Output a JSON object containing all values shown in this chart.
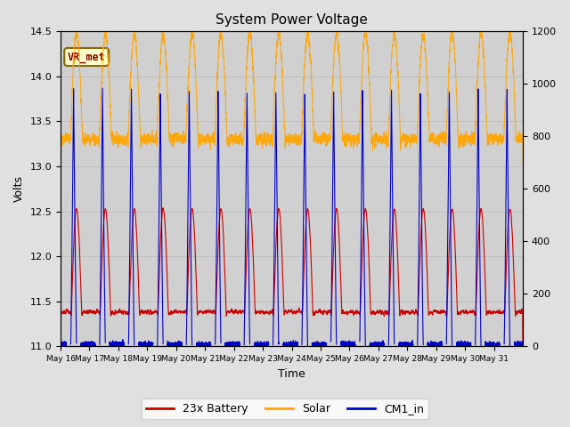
{
  "title": "System Power Voltage",
  "xlabel": "Time",
  "ylabel": "Volts",
  "ylim_left": [
    11.0,
    14.5
  ],
  "ylim_right": [
    0,
    1200
  ],
  "x_tick_labels": [
    "May 16",
    "May 17",
    "May 18",
    "May 19",
    "May 20",
    "May 21",
    "May 22",
    "May 23",
    "May 24",
    "May 25",
    "May 26",
    "May 27",
    "May 28",
    "May 29",
    "May 30",
    "May 31"
  ],
  "yticks_left": [
    11.0,
    11.5,
    12.0,
    12.5,
    13.0,
    13.5,
    14.0,
    14.5
  ],
  "yticks_right": [
    0,
    200,
    400,
    600,
    800,
    1000,
    1200
  ],
  "grid_color": "#bbbbbb",
  "fig_bg_color": "#e0e0e0",
  "plot_bg_color": "#d0d0d0",
  "battery_color": "#cc0000",
  "solar_color": "#ffa500",
  "cm1_color": "#0000cc",
  "annotation_text": "VR_met",
  "annotation_fg": "#880000",
  "annotation_bg": "#ffffcc",
  "annotation_edge": "#886600",
  "legend_labels": [
    "23x Battery",
    "Solar",
    "CM1_in"
  ],
  "n_days": 16
}
